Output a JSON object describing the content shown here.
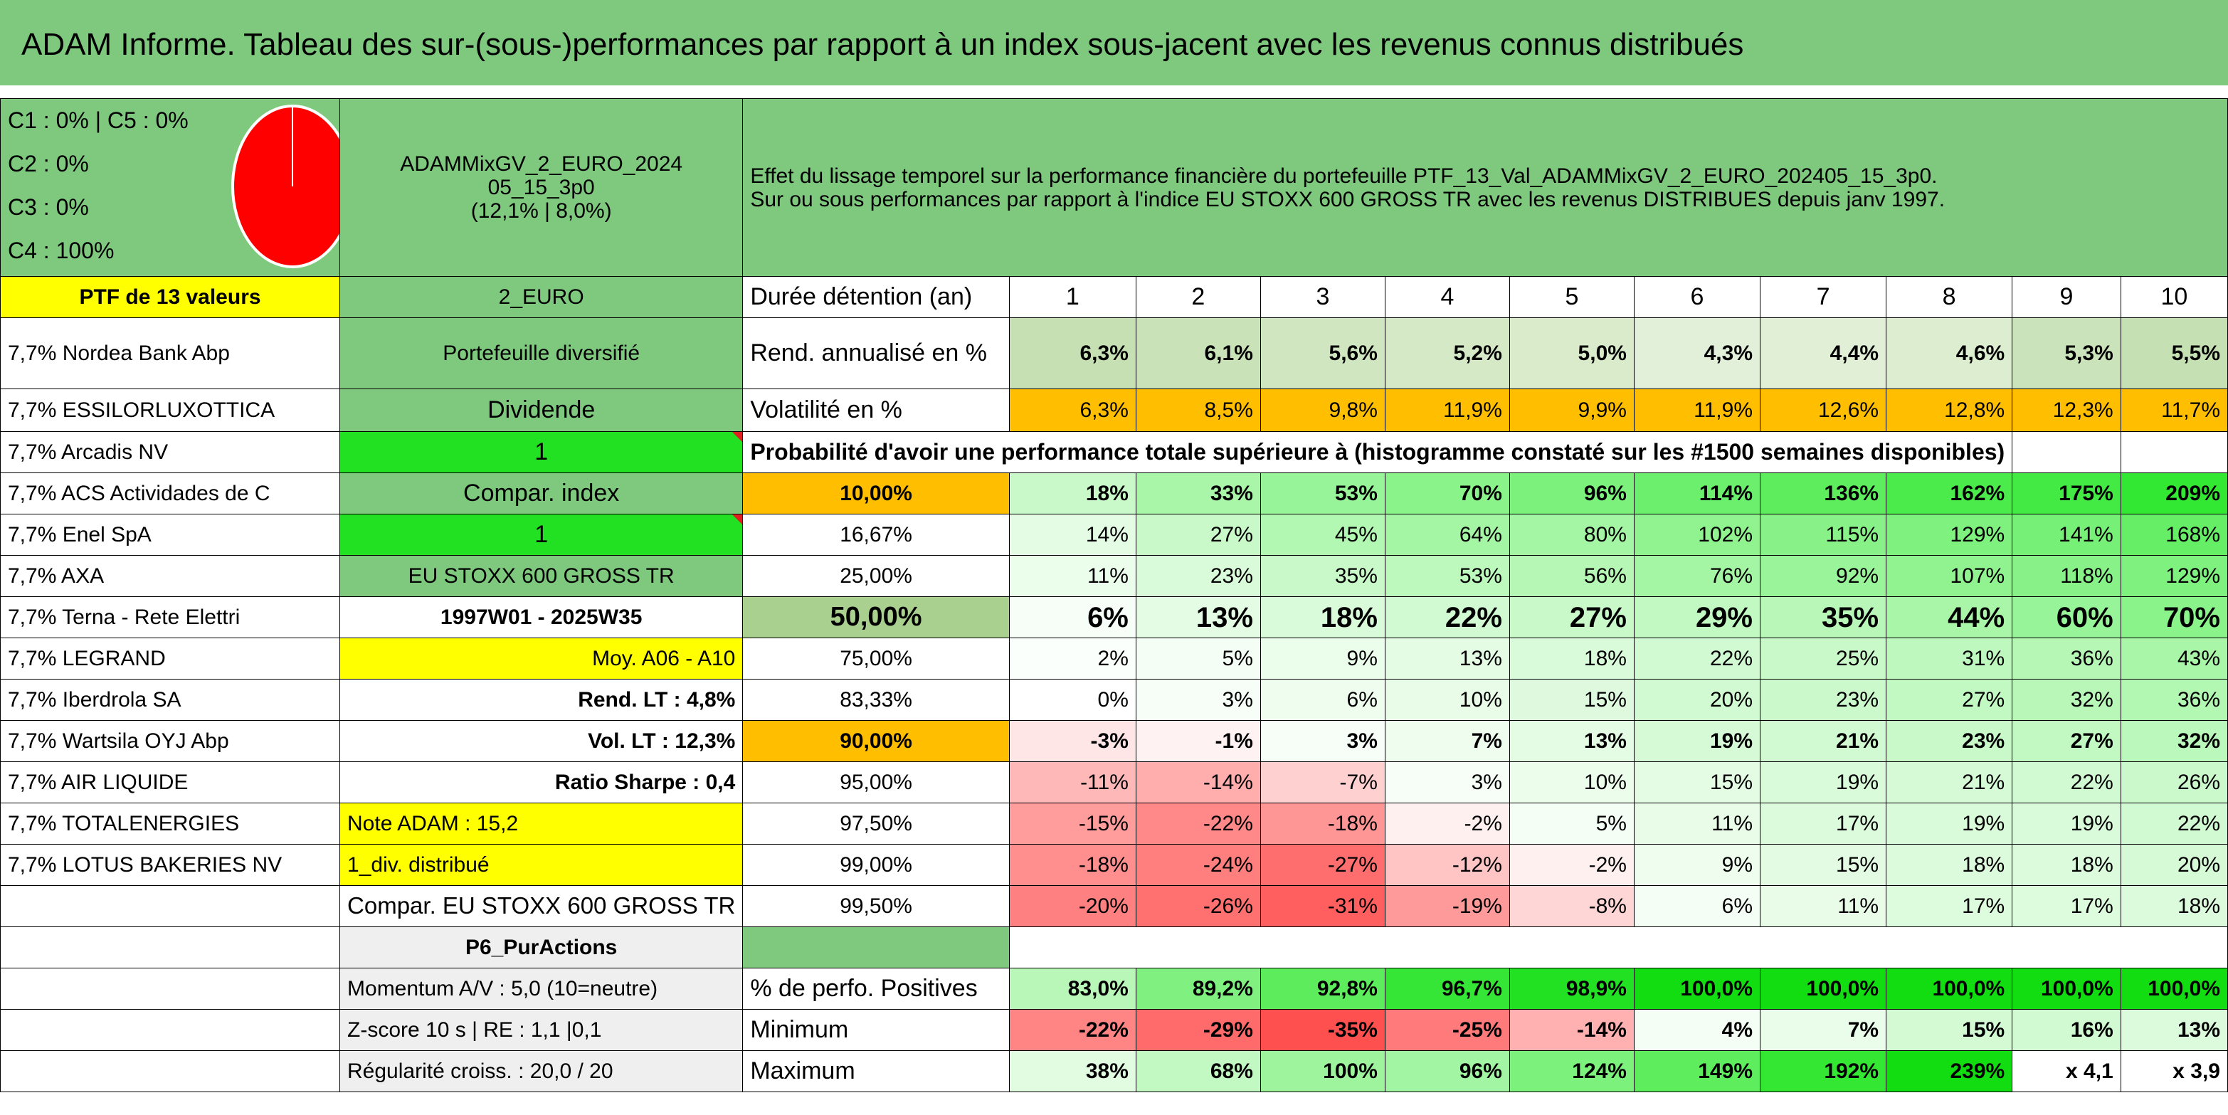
{
  "title": "ADAM Informe. Tableau des sur-(sous-)performances par rapport à un index sous-jacent avec les revenus connus distribués",
  "composition": [
    "C1 : 0% | C5 : 0%",
    "C2 : 0%",
    "C3 : 0%",
    "C4 : 100%"
  ],
  "pie_icon": "pie-chart-icon",
  "pie_color": "#ff0000",
  "fund": {
    "line1": "ADAMMixGV_2_EURO_2024",
    "line2": "05_15_3p0",
    "line3": "(12,1% | 8,0%)"
  },
  "description": {
    "line1": "Effet du lissage temporel sur la performance financière du portefeuille PTF_13_Val_ADAMMixGV_2_EURO_202405_15_3p0.",
    "line2": "Sur ou sous performances par rapport à l'indice EU STOXX 600 GROSS TR avec les revenus DISTRIBUES depuis janv 1997."
  },
  "ptf_header": "PTF de 13 valeurs",
  "currency": "2_EURO",
  "duration_label": "Durée détention (an)",
  "years": [
    "1",
    "2",
    "3",
    "4",
    "5",
    "6",
    "7",
    "8",
    "9",
    "10"
  ],
  "holdings": [
    "7,7% Nordea Bank Abp",
    "7,7% ESSILORLUXOTTICA",
    "7,7% Arcadis NV",
    "7,7% ACS Actividades de C",
    "7,7% Enel SpA",
    "7,7% AXA",
    "7,7% Terna - Rete Elettri",
    "7,7% LEGRAND",
    "7,7% Iberdrola SA",
    "7,7% Wartsila OYJ Abp",
    "7,7% AIR LIQUIDE",
    "7,7% TOTALENERGIES",
    "7,7% LOTUS BAKERIES NV"
  ],
  "info": {
    "diversified": "Portefeuille diversifié",
    "dividend": "Dividende",
    "one_a": "1",
    "compar_index": "Compar. index",
    "one_b": "1",
    "index_name": "EU STOXX 600 GROSS TR",
    "period": "1997W01 - 2025W35",
    "moy": "Moy. A06 - A10",
    "rend_lt": "Rend. LT : 4,8%",
    "vol_lt": "Vol. LT : 12,3%",
    "sharpe": "Ratio Sharpe : 0,4",
    "note": "Note ADAM : 15,2",
    "div": "1_div. distribué",
    "compar_full": "Compar. EU STOXX 600 GROSS TR",
    "p6": "P6_PurActions",
    "momentum": "Momentum A/V : 5,0 (10=neutre)",
    "zscore": "Z-score 10 s | RE : 1,1 |0,1",
    "regularite": "Régularité croiss. : 20,0 / 20"
  },
  "rend": {
    "label": "Rend. annualisé en %",
    "values": [
      "6,3%",
      "6,1%",
      "5,6%",
      "5,2%",
      "5,0%",
      "4,3%",
      "4,4%",
      "4,6%",
      "5,3%",
      "5,5%"
    ]
  },
  "vol": {
    "label": "Volatilité en %",
    "values": [
      "6,3%",
      "8,5%",
      "9,8%",
      "11,9%",
      "9,9%",
      "11,9%",
      "12,6%",
      "12,8%",
      "12,3%",
      "11,7%"
    ]
  },
  "prob_header": "Probabilité d'avoir une performance totale supérieure à (histogramme constaté sur les #1500 semaines disponibles)",
  "prob_rows": [
    {
      "pct": "10,00%",
      "values": [
        "18%",
        "33%",
        "53%",
        "70%",
        "96%",
        "114%",
        "136%",
        "162%",
        "175%",
        "209%"
      ]
    },
    {
      "pct": "16,67%",
      "values": [
        "14%",
        "27%",
        "45%",
        "64%",
        "80%",
        "102%",
        "115%",
        "129%",
        "141%",
        "168%"
      ]
    },
    {
      "pct": "25,00%",
      "values": [
        "11%",
        "23%",
        "35%",
        "53%",
        "56%",
        "76%",
        "92%",
        "107%",
        "118%",
        "129%"
      ]
    },
    {
      "pct": "50,00%",
      "values": [
        "6%",
        "13%",
        "18%",
        "22%",
        "27%",
        "29%",
        "35%",
        "44%",
        "60%",
        "70%"
      ]
    },
    {
      "pct": "75,00%",
      "values": [
        "2%",
        "5%",
        "9%",
        "13%",
        "18%",
        "22%",
        "25%",
        "31%",
        "36%",
        "43%"
      ]
    },
    {
      "pct": "83,33%",
      "values": [
        "0%",
        "3%",
        "6%",
        "10%",
        "15%",
        "20%",
        "23%",
        "27%",
        "32%",
        "36%"
      ]
    },
    {
      "pct": "90,00%",
      "values": [
        "-3%",
        "-1%",
        "3%",
        "7%",
        "13%",
        "19%",
        "21%",
        "23%",
        "27%",
        "32%"
      ]
    },
    {
      "pct": "95,00%",
      "values": [
        "-11%",
        "-14%",
        "-7%",
        "3%",
        "10%",
        "15%",
        "19%",
        "21%",
        "22%",
        "26%"
      ]
    },
    {
      "pct": "97,50%",
      "values": [
        "-15%",
        "-22%",
        "-18%",
        "-2%",
        "5%",
        "11%",
        "17%",
        "19%",
        "19%",
        "22%"
      ]
    },
    {
      "pct": "99,00%",
      "values": [
        "-18%",
        "-24%",
        "-27%",
        "-12%",
        "-2%",
        "9%",
        "15%",
        "18%",
        "18%",
        "20%"
      ]
    },
    {
      "pct": "99,50%",
      "values": [
        "-20%",
        "-26%",
        "-31%",
        "-19%",
        "-8%",
        "6%",
        "11%",
        "17%",
        "17%",
        "18%"
      ]
    }
  ],
  "positives": {
    "label": "% de perfo. Positives",
    "values": [
      "83,0%",
      "89,2%",
      "92,8%",
      "96,7%",
      "98,9%",
      "100,0%",
      "100,0%",
      "100,0%",
      "100,0%",
      "100,0%"
    ]
  },
  "minimum": {
    "label": "Minimum",
    "values": [
      "-22%",
      "-29%",
      "-35%",
      "-25%",
      "-14%",
      "4%",
      "7%",
      "15%",
      "16%",
      "13%"
    ]
  },
  "maximum": {
    "label": "Maximum",
    "values": [
      "38%",
      "68%",
      "100%",
      "96%",
      "124%",
      "149%",
      "192%",
      "239%",
      "x 4,1",
      "x 3,9"
    ]
  },
  "colors": {
    "header_green": "#7ec97e",
    "yellow": "#ffff00",
    "orange": "#ffbf00",
    "bright_green": "#22e022",
    "red_text": "#e02020",
    "rend_bg": [
      "#c6e0b4",
      "#c9e2b8",
      "#d0e6c0",
      "#d6e9c7",
      "#d9ebcb",
      "#e2f0d9",
      "#e0efd6",
      "#dcedd0",
      "#cbe3ba",
      "#c5e0b3"
    ],
    "prob_bg": [
      [
        "#c9f9c9",
        "#a9f6a9",
        "#98f498",
        "#8af38a",
        "#7cf17c",
        "#6cef6c",
        "#5ded5d",
        "#4ceb4c",
        "#44ea44",
        "#33e833"
      ],
      [
        "#e4fce4",
        "#c9f9c9",
        "#b2f7b2",
        "#a4f5a4",
        "#a4f5a4",
        "#90f390",
        "#88f288",
        "#7ef17e",
        "#76f076",
        "#66ee66"
      ],
      [
        "#ebfdeb",
        "#d9fbd9",
        "#c9f9c9",
        "#bdf8bd",
        "#b6f7b6",
        "#a4f5a4",
        "#9af49a",
        "#90f390",
        "#88f288",
        "#7ef17e"
      ],
      [
        "#f7fef7",
        "#e4fce4",
        "#d9fbd9",
        "#d2fad2",
        "#c9f9c9",
        "#c2f8c2",
        "#b8f7b8",
        "#a9f6a9",
        "#98f498",
        "#8af38a"
      ],
      [
        "#fbfffb",
        "#f4fef4",
        "#ebfdeb",
        "#e4fce4",
        "#d9fbd9",
        "#d2fad2",
        "#c9f9c9",
        "#bff8bf",
        "#b6f7b6",
        "#a9f6a9"
      ],
      [
        "#ffffff",
        "#f7fef7",
        "#effdef",
        "#e8fce8",
        "#def9de",
        "#d2fad2",
        "#cbf9cb",
        "#c2f8c2",
        "#b8f7b8",
        "#b2f7b2"
      ],
      [
        "#ffe6e6",
        "#fff2f2",
        "#f7fef7",
        "#eefdee",
        "#e4fce4",
        "#d6fad6",
        "#d2fad2",
        "#c9f9c9",
        "#c2f8c2",
        "#bbf8bb"
      ],
      [
        "#ffb8b8",
        "#ffadad",
        "#ffd0d0",
        "#f7fef7",
        "#ecfdec",
        "#e4fce4",
        "#d9fbd9",
        "#d6fad6",
        "#d2fad2",
        "#cbf9cb"
      ],
      [
        "#ff9c9c",
        "#ff8888",
        "#ff9696",
        "#fff0f0",
        "#f4fef4",
        "#e8fce8",
        "#dcfbdc",
        "#d9fbd9",
        "#d9fbd9",
        "#d2fad2"
      ],
      [
        "#ff8e8e",
        "#ff7e7e",
        "#ff6e6e",
        "#ffc4c4",
        "#fff0f0",
        "#eefdee",
        "#e2fbe2",
        "#dcfbdc",
        "#dcfbdc",
        "#d6fad6"
      ],
      [
        "#ff8080",
        "#ff7070",
        "#ff5f5f",
        "#ff9a9a",
        "#ffd6d6",
        "#f4fef4",
        "#e8fce8",
        "#ddfbdd",
        "#ddfbdd",
        "#dcfbdc"
      ]
    ],
    "pos_bg": [
      "#b8f7b8",
      "#80f080",
      "#5cec5c",
      "#36e636",
      "#22e022",
      "#11dd11",
      "#11dd11",
      "#11dd11",
      "#11dd11",
      "#11dd11"
    ],
    "min_bg": [
      "#ff8585",
      "#ff6a6a",
      "#ff5050",
      "#ff7a7a",
      "#ffb0b0",
      "#f4fef4",
      "#eafdea",
      "#d4fad4",
      "#d2fad2",
      "#dcfbdc"
    ],
    "max_bg": [
      "#e2fce2",
      "#c2f8c2",
      "#9df49d",
      "#a2f5a2",
      "#7cf17c",
      "#5ded5d",
      "#33e733",
      "#11dd11",
      "#ffffff",
      "#ffffff"
    ]
  }
}
